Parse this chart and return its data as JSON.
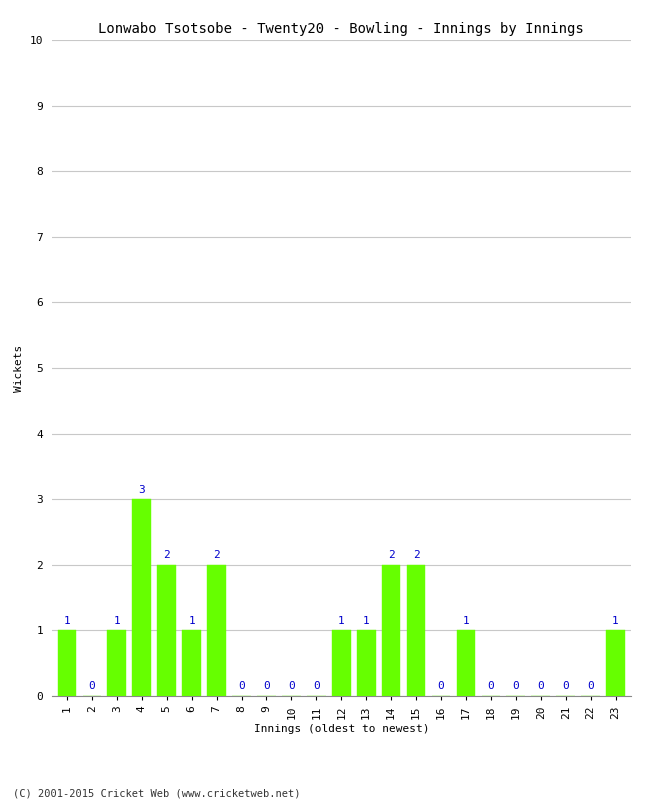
{
  "title": "Lonwabo Tsotsobe - Twenty20 - Bowling - Innings by Innings",
  "xlabel": "Innings (oldest to newest)",
  "ylabel": "Wickets",
  "innings": [
    1,
    2,
    3,
    4,
    5,
    6,
    7,
    8,
    9,
    10,
    11,
    12,
    13,
    14,
    15,
    16,
    17,
    18,
    19,
    20,
    21,
    22,
    23
  ],
  "wickets": [
    1,
    0,
    1,
    3,
    2,
    1,
    2,
    0,
    0,
    0,
    0,
    1,
    1,
    2,
    2,
    0,
    1,
    0,
    0,
    0,
    0,
    0,
    1
  ],
  "bar_color": "#66ff00",
  "bar_edge_color": "#66ff00",
  "label_color": "#0000cc",
  "ylim": [
    0,
    10
  ],
  "yticks": [
    0,
    1,
    2,
    3,
    4,
    5,
    6,
    7,
    8,
    9,
    10
  ],
  "background_color": "#ffffff",
  "grid_color": "#c8c8c8",
  "footer": "(C) 2001-2015 Cricket Web (www.cricketweb.net)",
  "title_fontsize": 10,
  "label_fontsize": 8,
  "tick_fontsize": 8,
  "value_label_fontsize": 8,
  "footer_fontsize": 7.5
}
